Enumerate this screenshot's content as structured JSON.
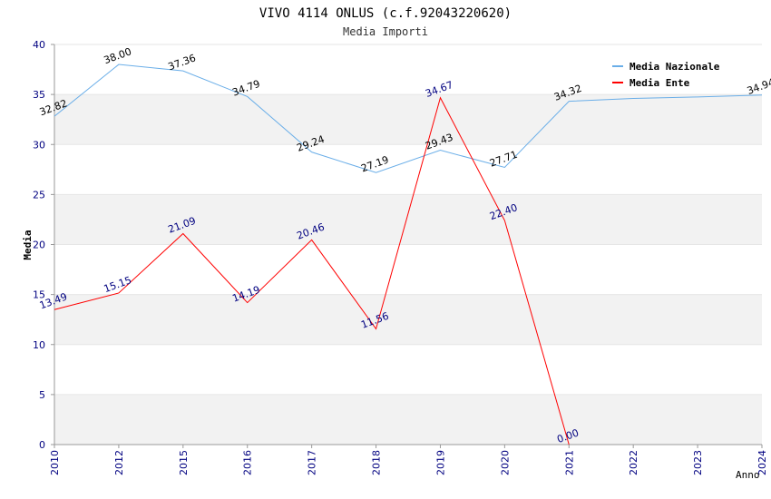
{
  "chart_data": {
    "type": "line",
    "title": "VIVO 4114 ONLUS (c.f.92043220620)",
    "subtitle": "Media Importi",
    "xlabel": "Anno",
    "ylabel": "Media",
    "categories": [
      "2010",
      "2012",
      "2015",
      "2016",
      "2017",
      "2018",
      "2019",
      "2020",
      "2021",
      "2022",
      "2023",
      "2024"
    ],
    "ylim": [
      0,
      40
    ],
    "yticks": [
      0,
      5,
      10,
      15,
      20,
      25,
      30,
      35,
      40
    ],
    "grid": true,
    "legend_position": "top-right",
    "series": [
      {
        "name": "Media Nazionale",
        "color": "#6aaee8",
        "label_color": "#000000",
        "values": [
          32.82,
          38.0,
          37.36,
          34.79,
          29.24,
          27.19,
          29.43,
          27.71,
          34.32,
          34.6,
          34.75,
          34.94
        ],
        "labels": [
          "32.82",
          "38.00",
          "37.36",
          "34.79",
          "29.24",
          "27.19",
          "29.43",
          "27.71",
          "34.32",
          null,
          null,
          "34.94"
        ]
      },
      {
        "name": "Media Ente",
        "color": "#ff0000",
        "label_color": "#000080",
        "values": [
          13.49,
          15.15,
          21.09,
          14.19,
          20.46,
          11.56,
          34.67,
          22.4,
          0.0,
          null,
          null,
          null
        ],
        "labels": [
          "13.49",
          "15.15",
          "21.09",
          "14.19",
          "20.46",
          "11.56",
          "34.67",
          "22.40",
          "0.00",
          null,
          null,
          null
        ]
      }
    ]
  }
}
